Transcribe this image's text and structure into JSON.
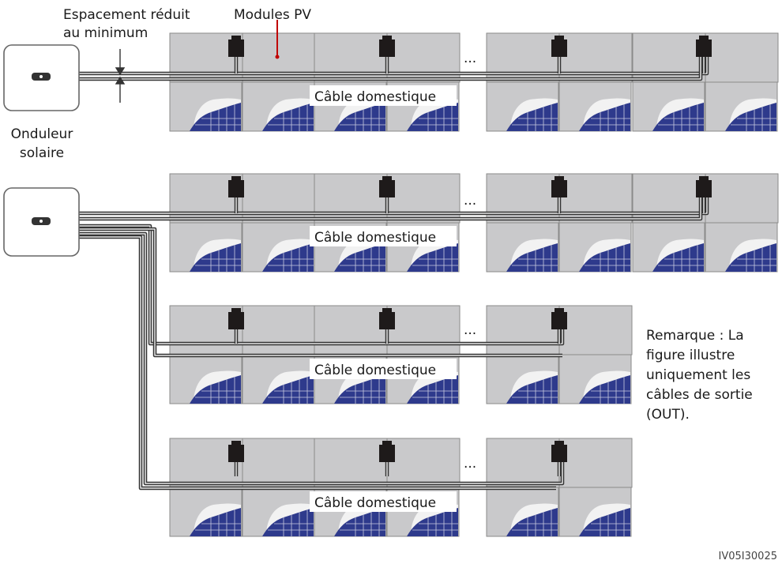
{
  "labels": {
    "spacing_line1": "Espacement réduit",
    "spacing_line2": "au minimum",
    "modules": "Modules PV",
    "inverter_line1": "Onduleur",
    "inverter_line2": "solaire",
    "note_lines": [
      "Remarque : La",
      "figure illustre",
      "uniquement les",
      "câbles de sortie",
      "(OUT)."
    ],
    "figure_code": "IV05I30025",
    "ellipsis": "...",
    "rows": [
      {
        "cable_label": "Câble domestique"
      },
      {
        "cable_label": "Câble domestique"
      },
      {
        "cable_label": "Câble domestique"
      },
      {
        "cable_label": "Câble domestique"
      }
    ]
  },
  "colors": {
    "panel_fill": "#c9c9cb",
    "panel_border": "#8a8a8a",
    "cell_blue": "#2e3a8c",
    "glare": "#f2f2f2",
    "cable": "#333333",
    "junction_box": "#1e1a1a",
    "accent_red": "#c00000"
  }
}
